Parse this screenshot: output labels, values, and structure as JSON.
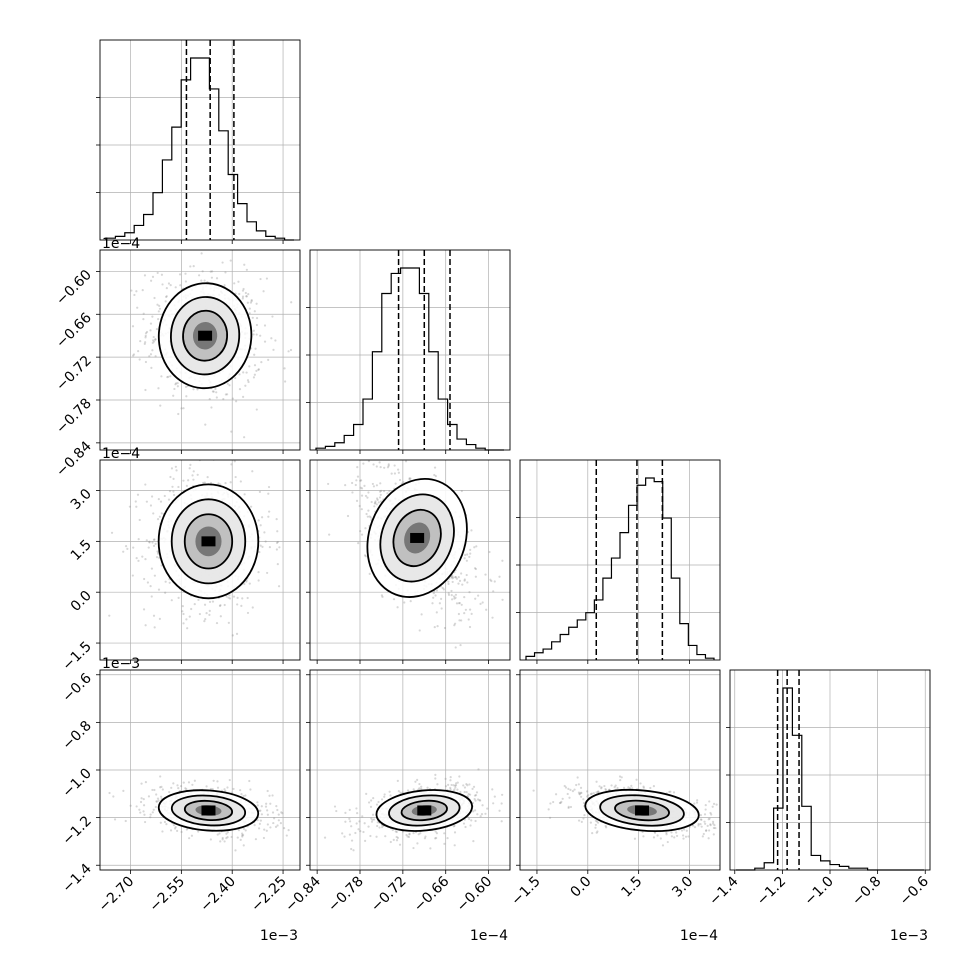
{
  "chart_data": {
    "type": "corner",
    "grid": true,
    "parameters": [
      {
        "ticks": [
          "−2.70",
          "−2.55",
          "−2.40",
          "−2.25"
        ],
        "tick_values": [
          -2.7,
          -2.55,
          -2.4,
          -2.25
        ],
        "range": [
          -2.79,
          -2.2
        ],
        "offset_label": "1e−3",
        "quantiles": [
          -2.535,
          -2.465,
          -2.395
        ],
        "hist": [
          1,
          2,
          4,
          8,
          14,
          26,
          44,
          62,
          88,
          100,
          100,
          83,
          60,
          36,
          20,
          10,
          5,
          2,
          1,
          0
        ]
      },
      {
        "ticks": [
          "−0.84",
          "−0.78",
          "−0.72",
          "−0.66",
          "−0.60"
        ],
        "tick_values": [
          -0.84,
          -0.78,
          -0.72,
          -0.66,
          -0.6
        ],
        "range": [
          -0.85,
          -0.57
        ],
        "offset_label": "1e−4",
        "quantiles": [
          -0.726,
          -0.69,
          -0.654
        ],
        "hist": [
          1,
          2,
          4,
          8,
          14,
          28,
          54,
          86,
          97,
          100,
          100,
          86,
          54,
          28,
          14,
          6,
          3,
          1,
          0,
          0
        ]
      },
      {
        "ticks": [
          "−1.5",
          "0.0",
          "1.5",
          "3.0"
        ],
        "tick_values": [
          -1.5,
          0.0,
          1.5,
          3.0
        ],
        "range": [
          -2.0,
          3.9
        ],
        "offset_label": "1e−4",
        "quantiles": [
          0.25,
          1.45,
          2.2
        ],
        "hist": [
          2,
          4,
          6,
          10,
          14,
          18,
          22,
          26,
          33,
          45,
          56,
          70,
          85,
          96,
          100,
          98,
          78,
          45,
          20,
          8,
          3,
          1
        ]
      },
      {
        "ticks": [
          "−1.4",
          "−1.2",
          "−1.0",
          "−0.8",
          "−0.6"
        ],
        "tick_values": [
          -1.4,
          -1.2,
          -1.0,
          -0.8,
          -0.6
        ],
        "range": [
          -1.42,
          -0.58
        ],
        "offset_label": "1e−3",
        "quantiles": [
          -1.22,
          -1.18,
          -1.13
        ],
        "hist": [
          0,
          0,
          1,
          4,
          34,
          100,
          74,
          35,
          8,
          5,
          3,
          2,
          1,
          1,
          0,
          0,
          0,
          0,
          0,
          0
        ]
      }
    ],
    "pairs": [
      {
        "row": 1,
        "col": 0,
        "center": [
          -2.48,
          -0.69
        ],
        "sigma": [
          0.065,
          0.035
        ],
        "rho": -0.1
      },
      {
        "row": 2,
        "col": 0,
        "center": [
          -2.47,
          1.5
        ],
        "sigma": [
          0.07,
          0.8
        ],
        "rho": 0.0
      },
      {
        "row": 2,
        "col": 1,
        "center": [
          -0.7,
          1.6
        ],
        "sigma": [
          0.032,
          0.85
        ],
        "rho": -0.55
      },
      {
        "row": 3,
        "col": 0,
        "center": [
          -2.47,
          -1.17
        ],
        "sigma": [
          0.07,
          0.04
        ],
        "rho": -0.3
      },
      {
        "row": 3,
        "col": 1,
        "center": [
          -0.69,
          -1.17
        ],
        "sigma": [
          0.032,
          0.04
        ],
        "rho": 0.4
      },
      {
        "row": 3,
        "col": 2,
        "center": [
          1.6,
          -1.17
        ],
        "sigma": [
          0.8,
          0.04
        ],
        "rho": -0.45
      }
    ]
  }
}
